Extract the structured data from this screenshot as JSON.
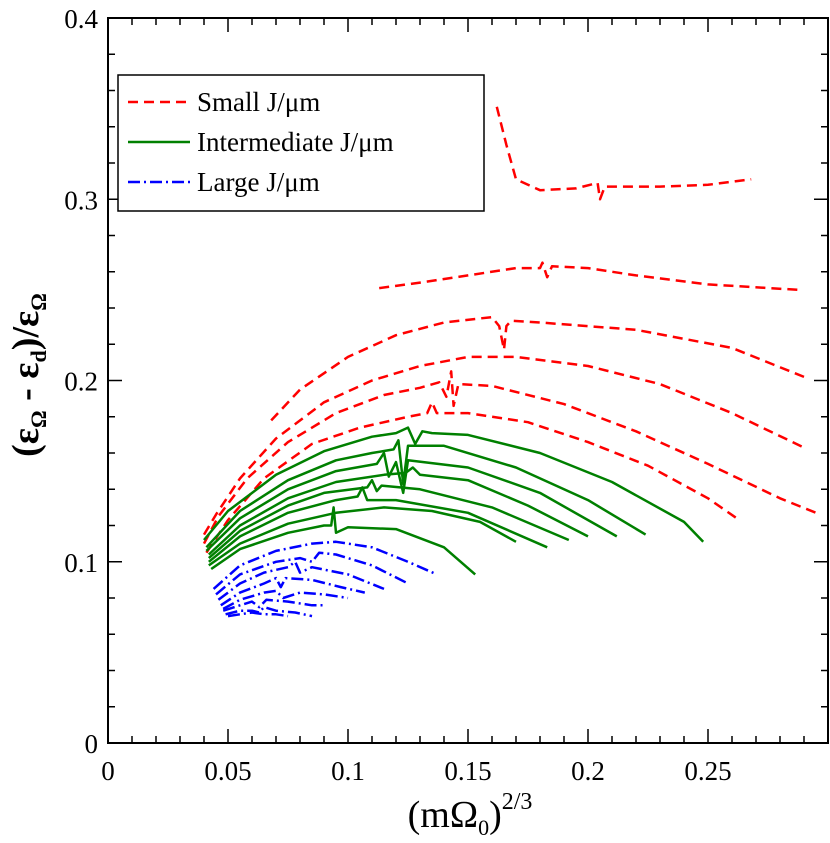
{
  "chart_data": {
    "type": "line",
    "title": "",
    "xlabel": "(mΩ0)^2/3",
    "xlabel_parts": {
      "open": "(m",
      "omega": "Ω",
      "sub": "0",
      "close": ")",
      "sup": "2/3"
    },
    "ylabel": "(εΩ - εd)/εΩ",
    "ylabel_parts": {
      "open": "(",
      "eps1": "ε",
      "sub1": "Ω",
      "minus": " - ",
      "eps2": "ε",
      "sub2": "d",
      "close": ")/",
      "eps3": "ε",
      "sub3": "Ω"
    },
    "xlim": [
      0,
      0.3
    ],
    "ylim": [
      0,
      0.4
    ],
    "x_ticks": [
      0,
      0.05,
      0.1,
      0.15,
      0.2,
      0.25
    ],
    "x_tick_labels": [
      "0",
      "0.05",
      "0.1",
      "0.15",
      "0.2",
      "0.25"
    ],
    "y_ticks": [
      0,
      0.1,
      0.2,
      0.3,
      0.4
    ],
    "y_tick_labels": [
      "0",
      "0.1",
      "0.2",
      "0.3",
      "0.4"
    ],
    "grid": false,
    "legend_position": "top-left",
    "legend": [
      {
        "label": "Small J/μm",
        "color": "#ff0000",
        "dash": "dashed"
      },
      {
        "label": "Intermediate J/μm",
        "color": "#008000",
        "dash": "solid"
      },
      {
        "label": "Large J/μm",
        "color": "#0000ff",
        "dash": "dash-dot"
      }
    ],
    "groups": [
      {
        "name": "Small J/μm",
        "color": "#ff0000",
        "dash": "dashed",
        "series": [
          {
            "x": [
              0.162,
              0.166,
              0.17,
              0.18,
              0.195,
              0.204,
              0.205,
              0.207,
              0.212,
              0.23,
              0.25,
              0.268
            ],
            "y": [
              0.351,
              0.33,
              0.311,
              0.305,
              0.306,
              0.309,
              0.3,
              0.307,
              0.307,
              0.307,
              0.308,
              0.311
            ]
          },
          {
            "x": [
              0.113,
              0.13,
              0.15,
              0.17,
              0.18,
              0.181,
              0.183,
              0.185,
              0.2,
              0.22,
              0.25,
              0.288
            ],
            "y": [
              0.251,
              0.254,
              0.258,
              0.262,
              0.262,
              0.265,
              0.257,
              0.263,
              0.262,
              0.258,
              0.253,
              0.25
            ]
          },
          {
            "x": [
              0.068,
              0.08,
              0.1,
              0.12,
              0.14,
              0.16,
              0.163,
              0.165,
              0.166,
              0.168,
              0.18,
              0.22,
              0.26,
              0.29
            ],
            "y": [
              0.178,
              0.195,
              0.213,
              0.225,
              0.232,
              0.235,
              0.23,
              0.217,
              0.23,
              0.233,
              0.232,
              0.228,
              0.218,
              0.202
            ]
          },
          {
            "x": [
              0.04,
              0.045,
              0.055,
              0.07,
              0.09,
              0.11,
              0.13,
              0.15,
              0.17,
              0.2,
              0.23,
              0.26,
              0.29
            ],
            "y": [
              0.115,
              0.126,
              0.146,
              0.168,
              0.188,
              0.2,
              0.208,
              0.213,
              0.213,
              0.208,
              0.198,
              0.182,
              0.163
            ]
          },
          {
            "x": [
              0.04,
              0.046,
              0.058,
              0.075,
              0.095,
              0.115,
              0.13,
              0.138,
              0.141,
              0.143,
              0.144,
              0.146,
              0.16,
              0.19,
              0.22,
              0.25,
              0.28,
              0.295
            ],
            "y": [
              0.11,
              0.125,
              0.146,
              0.166,
              0.182,
              0.192,
              0.196,
              0.199,
              0.191,
              0.205,
              0.186,
              0.198,
              0.197,
              0.187,
              0.172,
              0.154,
              0.135,
              0.127
            ]
          },
          {
            "x": [
              0.041,
              0.05,
              0.065,
              0.085,
              0.105,
              0.125,
              0.133,
              0.135,
              0.137,
              0.15,
              0.175,
              0.2,
              0.225,
              0.25,
              0.262
            ],
            "y": [
              0.105,
              0.123,
              0.146,
              0.165,
              0.174,
              0.18,
              0.182,
              0.188,
              0.182,
              0.182,
              0.177,
              0.166,
              0.153,
              0.135,
              0.124
            ]
          }
        ]
      },
      {
        "name": "Intermediate J/μm",
        "color": "#008000",
        "dash": "solid",
        "series": [
          {
            "x": [
              0.04,
              0.05,
              0.07,
              0.09,
              0.11,
              0.12,
              0.125,
              0.128,
              0.131,
              0.135,
              0.15,
              0.18,
              0.21,
              0.24,
              0.248
            ],
            "y": [
              0.112,
              0.128,
              0.148,
              0.161,
              0.169,
              0.171,
              0.174,
              0.165,
              0.172,
              0.171,
              0.17,
              0.16,
              0.144,
              0.122,
              0.111
            ]
          },
          {
            "x": [
              0.041,
              0.055,
              0.075,
              0.095,
              0.11,
              0.119,
              0.121,
              0.123,
              0.125,
              0.14,
              0.17,
              0.2,
              0.224
            ],
            "y": [
              0.108,
              0.128,
              0.145,
              0.156,
              0.16,
              0.162,
              0.167,
              0.143,
              0.164,
              0.164,
              0.152,
              0.134,
              0.115
            ]
          },
          {
            "x": [
              0.041,
              0.055,
              0.075,
              0.095,
              0.112,
              0.115,
              0.117,
              0.12,
              0.123,
              0.125,
              0.15,
              0.18,
              0.212
            ],
            "y": [
              0.106,
              0.124,
              0.14,
              0.15,
              0.154,
              0.16,
              0.147,
              0.155,
              0.138,
              0.156,
              0.152,
              0.138,
              0.114
            ]
          },
          {
            "x": [
              0.042,
              0.055,
              0.075,
              0.095,
              0.115,
              0.124,
              0.127,
              0.13,
              0.15,
              0.175,
              0.2
            ],
            "y": [
              0.104,
              0.12,
              0.135,
              0.144,
              0.148,
              0.149,
              0.152,
              0.148,
              0.145,
              0.131,
              0.114
            ]
          },
          {
            "x": [
              0.042,
              0.055,
              0.075,
              0.09,
              0.108,
              0.11,
              0.112,
              0.114,
              0.13,
              0.16,
              0.192
            ],
            "y": [
              0.102,
              0.117,
              0.131,
              0.138,
              0.141,
              0.145,
              0.139,
              0.142,
              0.14,
              0.13,
              0.112
            ]
          },
          {
            "x": [
              0.042,
              0.055,
              0.075,
              0.095,
              0.104,
              0.106,
              0.108,
              0.12,
              0.15,
              0.183
            ],
            "y": [
              0.1,
              0.114,
              0.127,
              0.134,
              0.136,
              0.141,
              0.134,
              0.134,
              0.127,
              0.108
            ]
          },
          {
            "x": [
              0.042,
              0.055,
              0.075,
              0.095,
              0.115,
              0.135,
              0.155,
              0.17
            ],
            "y": [
              0.098,
              0.11,
              0.121,
              0.127,
              0.13,
              0.128,
              0.122,
              0.111
            ]
          },
          {
            "x": [
              0.043,
              0.055,
              0.075,
              0.09,
              0.093,
              0.094,
              0.095,
              0.1,
              0.12,
              0.14,
              0.153
            ],
            "y": [
              0.096,
              0.107,
              0.116,
              0.12,
              0.12,
              0.13,
              0.116,
              0.119,
              0.118,
              0.108,
              0.093
            ]
          }
        ]
      },
      {
        "name": "Large J/μm",
        "color": "#0000ff",
        "dash": "dash-dot",
        "series": [
          {
            "x": [
              0.044,
              0.055,
              0.07,
              0.085,
              0.095,
              0.11,
              0.125,
              0.137
            ],
            "y": [
              0.085,
              0.098,
              0.106,
              0.11,
              0.111,
              0.108,
              0.1,
              0.093
            ]
          },
          {
            "x": [
              0.045,
              0.055,
              0.07,
              0.08,
              0.085,
              0.088,
              0.095,
              0.11,
              0.125
            ],
            "y": [
              0.082,
              0.093,
              0.1,
              0.102,
              0.1,
              0.105,
              0.104,
              0.098,
              0.088
            ]
          },
          {
            "x": [
              0.046,
              0.055,
              0.065,
              0.075,
              0.078,
              0.08,
              0.085,
              0.1,
              0.115
            ],
            "y": [
              0.079,
              0.088,
              0.094,
              0.097,
              0.1,
              0.094,
              0.097,
              0.093,
              0.085
            ]
          },
          {
            "x": [
              0.047,
              0.055,
              0.065,
              0.07,
              0.072,
              0.074,
              0.085,
              0.097,
              0.107
            ],
            "y": [
              0.076,
              0.083,
              0.088,
              0.091,
              0.086,
              0.091,
              0.09,
              0.086,
              0.083
            ]
          },
          {
            "x": [
              0.048,
              0.055,
              0.065,
              0.07,
              0.073,
              0.08,
              0.09,
              0.1
            ],
            "y": [
              0.074,
              0.079,
              0.083,
              0.084,
              0.08,
              0.083,
              0.082,
              0.08
            ]
          },
          {
            "x": [
              0.048,
              0.055,
              0.06,
              0.063,
              0.066,
              0.075,
              0.085,
              0.091
            ],
            "y": [
              0.073,
              0.076,
              0.078,
              0.075,
              0.079,
              0.078,
              0.076,
              0.076
            ]
          },
          {
            "x": [
              0.049,
              0.055,
              0.06,
              0.063,
              0.065,
              0.07,
              0.078,
              0.085
            ],
            "y": [
              0.071,
              0.073,
              0.073,
              0.072,
              0.075,
              0.073,
              0.072,
              0.07
            ]
          },
          {
            "x": [
              0.05,
              0.055,
              0.06,
              0.065,
              0.07,
              0.075
            ],
            "y": [
              0.07,
              0.071,
              0.072,
              0.071,
              0.071,
              0.07
            ]
          }
        ]
      }
    ]
  }
}
